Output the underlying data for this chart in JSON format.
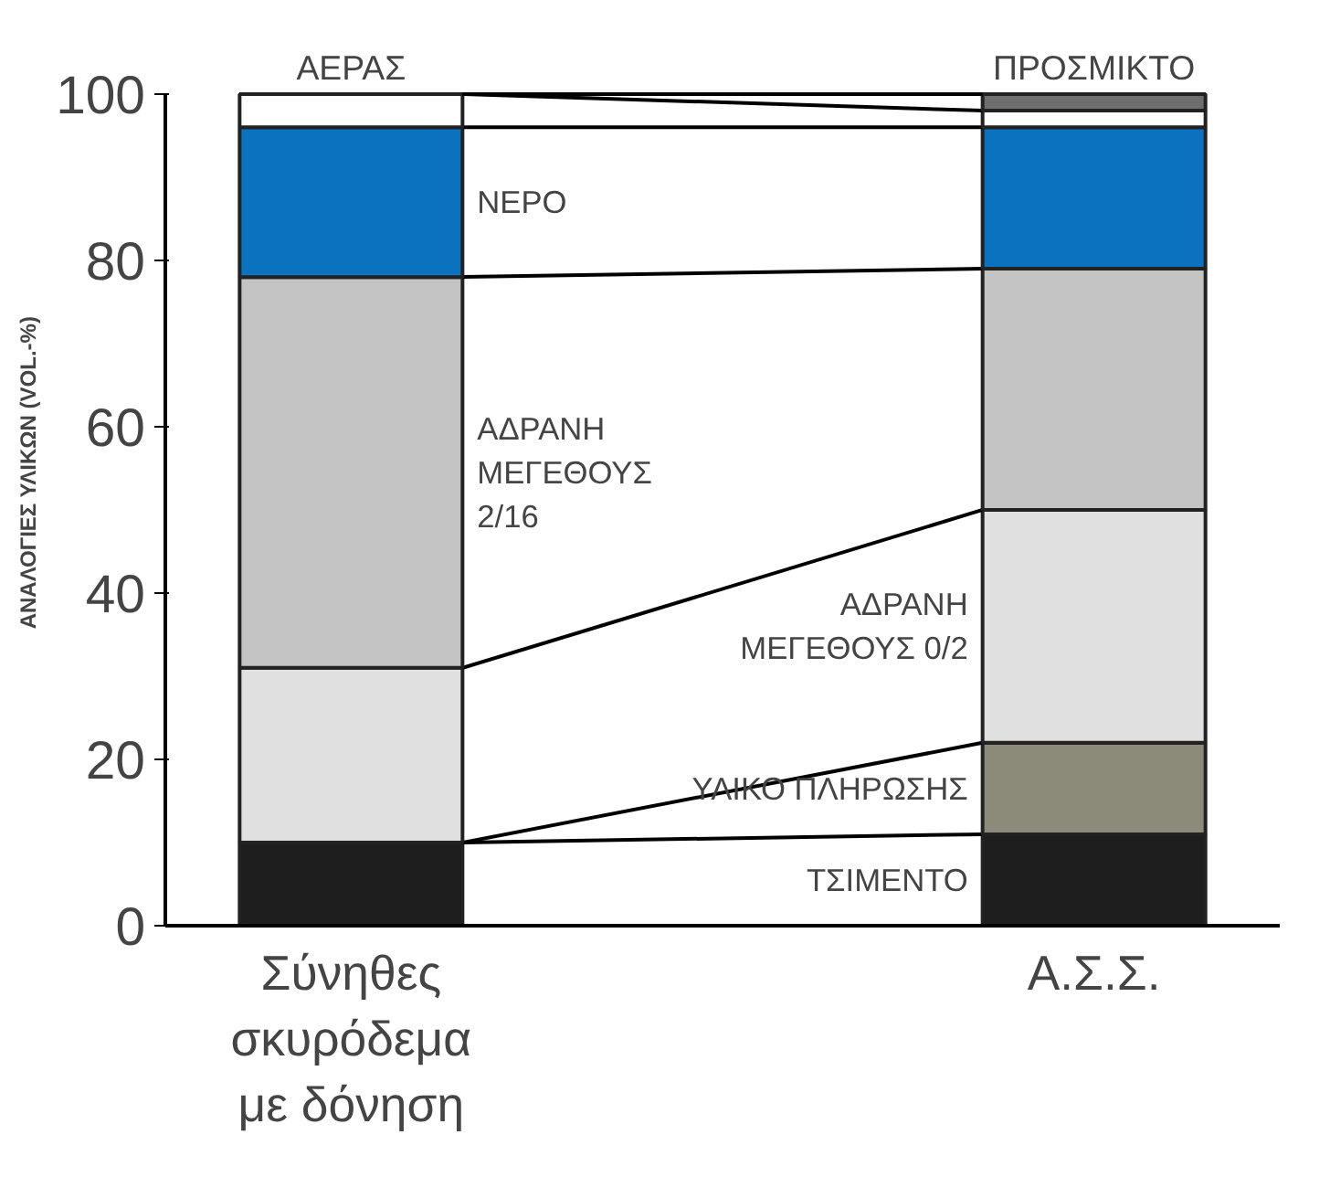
{
  "chart_data": {
    "type": "bar",
    "stacked": true,
    "ylabel": "ΑΝΑΛΟΓΙΕΣ ΥΛΙΚΩΝ (VOL.-%)",
    "categories": [
      "Σύνηθες σκυρόδεμα με δόνηση",
      "Α.Σ.Σ."
    ],
    "ylim": [
      0,
      100
    ],
    "yticks": [
      0,
      20,
      40,
      60,
      80,
      100
    ],
    "grid": false,
    "series": [
      {
        "name": "ΤΣΙΜΕΝΤΟ",
        "color": "#1e1e1e",
        "values": [
          10,
          11
        ]
      },
      {
        "name": "ΥΛΙΚΟ ΠΛΗΡΩΣΗΣ",
        "color": "#8c8a78",
        "values": [
          0,
          11
        ]
      },
      {
        "name": "ΑΔΡΑΝΗ ΜΕΓΕΘΟΥΣ 0/2",
        "color": "#e0e0e0",
        "values": [
          21,
          28
        ]
      },
      {
        "name": "ΑΔΡΑΝΗ ΜΕΓΕΘΟΥΣ 2/16",
        "color": "#c4c4c4",
        "values": [
          47,
          29
        ]
      },
      {
        "name": "ΝΕΡΟ",
        "color": "#0a72be",
        "values": [
          18,
          17
        ]
      },
      {
        "name": "ΑΕΡΑΣ",
        "color": "#ffffff",
        "values": [
          4,
          2
        ]
      },
      {
        "name": "ΠΡΟΣΜΙΚΤΟ",
        "color": "#6e6e6e",
        "values": [
          0,
          2
        ]
      }
    ]
  }
}
